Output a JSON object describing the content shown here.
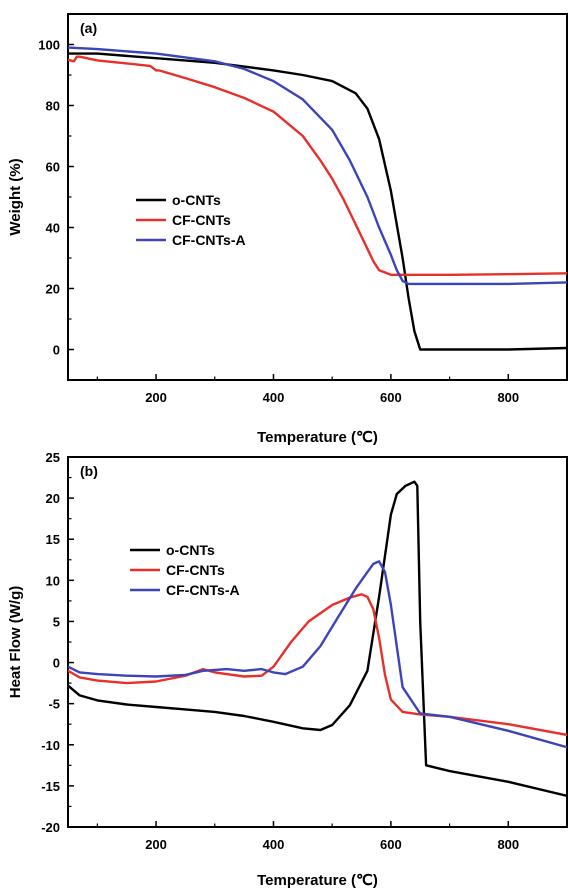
{
  "chart_data": [
    {
      "type": "line",
      "panel_label": "(a)",
      "xlabel": "Temperature (℃)",
      "ylabel": "Weight (%)",
      "xlim": [
        50,
        900
      ],
      "ylim": [
        -10,
        110
      ],
      "xticks": [
        200,
        400,
        600,
        800
      ],
      "yticks": [
        0,
        20,
        40,
        60,
        80,
        100
      ],
      "xtick_labels": [
        "200",
        "400",
        "600",
        "800"
      ],
      "ytick_labels": [
        "0",
        "20",
        "40",
        "60",
        "80",
        "100"
      ],
      "legend_position": "center-left",
      "series": [
        {
          "name": "o-CNTs",
          "color": "#000000",
          "x": [
            50,
            100,
            200,
            300,
            400,
            450,
            500,
            540,
            560,
            580,
            600,
            620,
            630,
            640,
            650,
            700,
            800,
            900
          ],
          "y": [
            97,
            97,
            95.5,
            94,
            91.5,
            90,
            88,
            84,
            79,
            69,
            52,
            30,
            17,
            6,
            0,
            0,
            0,
            0.5
          ]
        },
        {
          "name": "CF-CNTs",
          "color": "#e8302a",
          "x": [
            50,
            60,
            65,
            70,
            100,
            150,
            190,
            200,
            205,
            250,
            300,
            350,
            400,
            450,
            480,
            500,
            520,
            540,
            560,
            570,
            580,
            600,
            620,
            700,
            800,
            900
          ],
          "y": [
            95,
            94.5,
            96,
            96,
            94.8,
            93.8,
            93,
            91.5,
            91.5,
            89,
            86,
            82.5,
            78,
            70,
            62,
            56,
            49,
            41,
            33,
            29,
            26,
            24.5,
            24.5,
            24.5,
            24.7,
            25
          ]
        },
        {
          "name": "CF-CNTs-A",
          "color": "#3b45b8",
          "x": [
            50,
            100,
            200,
            300,
            350,
            400,
            450,
            500,
            530,
            560,
            580,
            600,
            610,
            620,
            630,
            650,
            700,
            800,
            900
          ],
          "y": [
            99,
            98.5,
            97,
            94.5,
            92,
            88,
            82,
            72,
            62,
            50,
            40,
            31,
            26,
            22.5,
            21.5,
            21.5,
            21.5,
            21.5,
            22
          ]
        }
      ]
    },
    {
      "type": "line",
      "panel_label": "(b)",
      "xlabel": "Temperature (℃)",
      "ylabel": "Heat Flow (W/g)",
      "xlim": [
        50,
        900
      ],
      "ylim": [
        -20,
        25
      ],
      "xticks": [
        200,
        400,
        600,
        800
      ],
      "yticks": [
        -20,
        -15,
        -10,
        -5,
        0,
        5,
        10,
        15,
        20,
        25
      ],
      "xtick_labels": [
        "200",
        "400",
        "600",
        "800"
      ],
      "ytick_labels": [
        "-20",
        "-15",
        "-10",
        "-5",
        "0",
        "5",
        "10",
        "15",
        "20",
        "25"
      ],
      "legend_position": "center-left",
      "series": [
        {
          "name": "o-CNTs",
          "color": "#000000",
          "x": [
            50,
            70,
            100,
            150,
            200,
            250,
            300,
            350,
            400,
            450,
            480,
            500,
            530,
            560,
            580,
            600,
            610,
            625,
            640,
            645,
            650,
            660,
            700,
            800,
            900
          ],
          "y": [
            -2.8,
            -4,
            -4.6,
            -5.1,
            -5.4,
            -5.7,
            -6.0,
            -6.5,
            -7.2,
            -8.0,
            -8.2,
            -7.6,
            -5.2,
            -1.0,
            8,
            18,
            20.5,
            21.5,
            22,
            21.5,
            5,
            -12.5,
            -13.2,
            -14.5,
            -16.2
          ]
        },
        {
          "name": "CF-CNTs",
          "color": "#e8302a",
          "x": [
            50,
            70,
            100,
            150,
            200,
            250,
            280,
            300,
            350,
            380,
            400,
            430,
            460,
            500,
            530,
            550,
            560,
            570,
            580,
            590,
            600,
            620,
            650,
            700,
            800,
            900
          ],
          "y": [
            -1,
            -1.8,
            -2.2,
            -2.5,
            -2.3,
            -1.6,
            -0.8,
            -1.2,
            -1.7,
            -1.6,
            -0.5,
            2.5,
            5,
            7,
            7.9,
            8.3,
            8.0,
            6.5,
            3,
            -1.5,
            -4.5,
            -6.0,
            -6.3,
            -6.6,
            -7.5,
            -8.8
          ]
        },
        {
          "name": "CF-CNTs-A",
          "color": "#3b45b8",
          "x": [
            50,
            70,
            100,
            150,
            200,
            250,
            280,
            300,
            320,
            350,
            380,
            400,
            420,
            450,
            480,
            510,
            540,
            560,
            570,
            580,
            590,
            600,
            620,
            650,
            700,
            800,
            900
          ],
          "y": [
            -0.5,
            -1.2,
            -1.4,
            -1.6,
            -1.7,
            -1.5,
            -1.0,
            -0.9,
            -0.8,
            -1.0,
            -0.8,
            -1.2,
            -1.4,
            -0.5,
            2,
            5.5,
            9,
            11,
            12,
            12.3,
            11,
            7,
            -3.0,
            -6.2,
            -6.6,
            -8.3,
            -10.3
          ]
        }
      ]
    }
  ]
}
